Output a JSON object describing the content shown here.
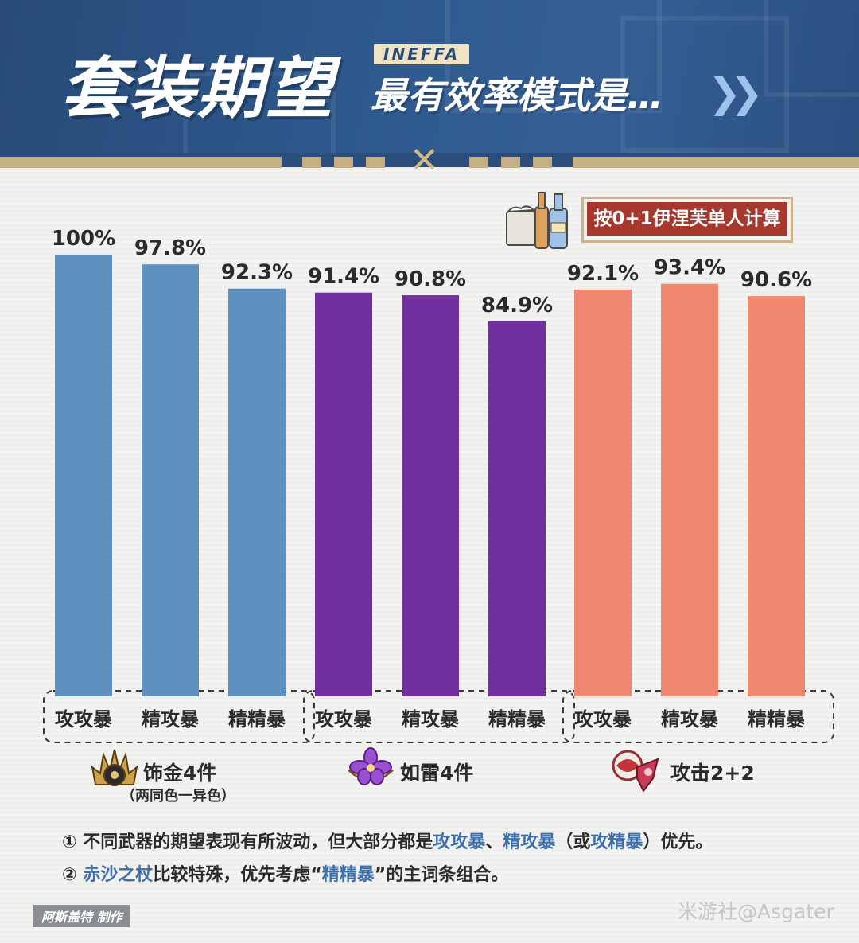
{
  "header": {
    "title": "套装期望",
    "tag": "INEFFA",
    "subtitle": "最有效率模式是…",
    "chevrons": "❯❯"
  },
  "note": "按0+1伊涅芙单人计算",
  "colors": {
    "group1": "#5f91c0",
    "group2": "#7030a0",
    "group3": "#f08770"
  },
  "chart_data": {
    "type": "bar",
    "categories": [
      "攻攻暴",
      "精攻暴",
      "精精暴",
      "攻攻暴",
      "精攻暴",
      "精精暴",
      "攻攻暴",
      "精攻暴",
      "精精暴"
    ],
    "groups": [
      {
        "name": "饰金4件",
        "subname": "（两同色一异色）",
        "icon": "gilded-dreams-icon",
        "categories": [
          "攻攻暴",
          "精攻暴",
          "精精暴"
        ],
        "values": [
          100,
          97.8,
          92.3
        ],
        "labels": [
          "100%",
          "97.8%",
          "92.3%"
        ]
      },
      {
        "name": "如雷4件",
        "subname": "",
        "icon": "thundering-fury-icon",
        "categories": [
          "攻攻暴",
          "精攻暴",
          "精精暴"
        ],
        "values": [
          91.4,
          90.8,
          84.9
        ],
        "labels": [
          "91.4%",
          "90.8%",
          "84.9%"
        ]
      },
      {
        "name": "攻击2+2",
        "subname": "",
        "icon": "atk-2plus2-icon",
        "categories": [
          "攻攻暴",
          "精攻暴",
          "精精暴"
        ],
        "values": [
          92.1,
          93.4,
          90.6
        ],
        "labels": [
          "92.1%",
          "93.4%",
          "90.6%"
        ]
      }
    ],
    "ylim": [
      0,
      100
    ],
    "grid": false,
    "legend": "none"
  },
  "footnotes": {
    "line1": {
      "prefix": "① 不同武器的期望表现有所波动，但大部分都是",
      "hl1": "攻攻暴",
      "sep": "、",
      "hl2": "精攻暴",
      "mid": "（或",
      "hl3": "攻精暴",
      "suffix": "）优先。"
    },
    "line2": {
      "prefix": "② ",
      "hl1": "赤沙之杖",
      "mid": "比较特殊，优先考虑“",
      "hl2": "精精暴",
      "suffix": "”的主词条组合。"
    }
  },
  "author": "阿斯盖特 制作",
  "watermark": "米游社@Asgater"
}
